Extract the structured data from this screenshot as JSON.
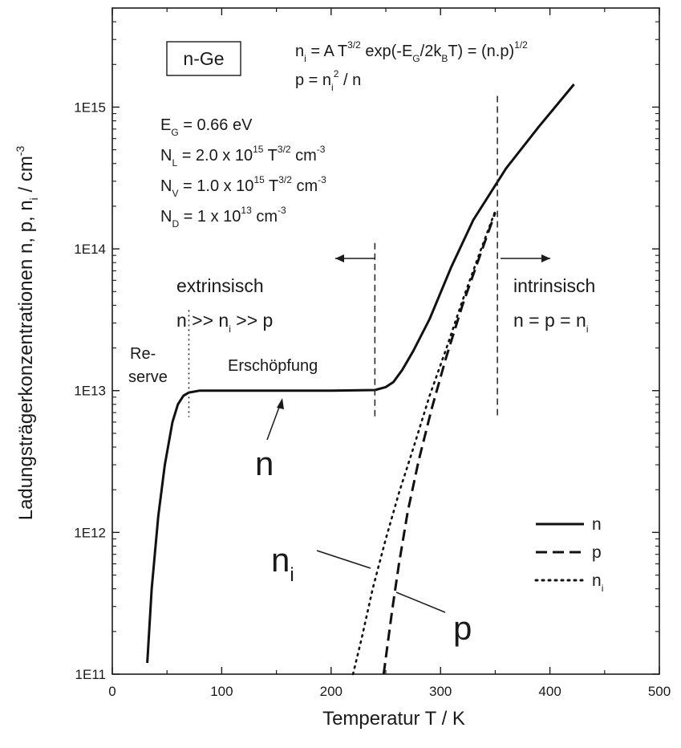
{
  "chart_data": {
    "type": "line",
    "xlabel": "Temperatur T  / K",
    "ylabel": "Ladungsträgerkonzentrationen n, p, n_i / cm^-3",
    "xlim": [
      0,
      500
    ],
    "ylim": [
      100000000000.0,
      5000000000000000.0
    ],
    "y_scale": "log",
    "x_ticks": [
      0,
      100,
      200,
      300,
      400,
      500
    ],
    "y_ticks": [
      {
        "value": 100000000000.0,
        "label": "1E11"
      },
      {
        "value": 1000000000000.0,
        "label": "1E12"
      },
      {
        "value": 10000000000000.0,
        "label": "1E13"
      },
      {
        "value": 100000000000000.0,
        "label": "1E14"
      },
      {
        "value": 1000000000000000.0,
        "label": "1E15"
      }
    ],
    "grid": false,
    "legend": {
      "placement": "bottom-right"
    },
    "series": [
      {
        "name": "n",
        "style": "solid",
        "x": [
          32,
          36,
          42,
          48,
          55,
          60,
          65,
          70,
          80,
          100,
          150,
          200,
          240,
          250,
          257,
          265,
          275,
          290,
          310,
          330,
          360,
          390,
          422
        ],
        "y": [
          120000000000.0,
          400000000000.0,
          1300000000000.0,
          3000000000000.0,
          6000000000000.0,
          8000000000000.0,
          9200000000000.0,
          9700000000000.0,
          10000000000000.0,
          10000000000000.0,
          10000000000000.0,
          10000000000000.0,
          10100000000000.0,
          10600000000000.0,
          11500000000000.0,
          14000000000000.0,
          19000000000000.0,
          32000000000000.0,
          75000000000000.0,
          160000000000000.0,
          370000000000000.0,
          730000000000000.0,
          1450000000000000.0
        ]
      },
      {
        "name": "p",
        "style": "dashed",
        "x": [
          248,
          252,
          256,
          262,
          270,
          280,
          292,
          305,
          320,
          335,
          350
        ],
        "y": [
          100000000000.0,
          170000000000.0,
          290000000000.0,
          600000000000.0,
          1400000000000.0,
          3200000000000.0,
          7500000000000.0,
          17000000000000.0,
          40000000000000.0,
          85000000000000.0,
          180000000000000.0
        ]
      },
      {
        "name": "n_i",
        "style": "dotted",
        "x": [
          220,
          228,
          238,
          250,
          262,
          275,
          290,
          305,
          320,
          335,
          350
        ],
        "y": [
          100000000000.0,
          180000000000.0,
          400000000000.0,
          900000000000.0,
          1900000000000.0,
          3900000000000.0,
          9200000000000.0,
          19500000000000.0,
          43000000000000.0,
          90000000000000.0,
          185000000000000.0
        ]
      }
    ],
    "vlines": [
      {
        "x": 70,
        "style": "dotted",
        "y_range": [
          6500000000000.0,
          37000000000000.0
        ]
      },
      {
        "x": 240,
        "style": "dashed",
        "y_range": [
          6500000000000.0,
          110000000000000.0
        ]
      },
      {
        "x": 352,
        "style": "dashed",
        "y_range": [
          6500000000000.0,
          1200000000000000.0
        ]
      }
    ],
    "annotations": {
      "material": "n-Ge",
      "formula_ni": {
        "n": "n",
        "i": "i",
        "a": " = A T",
        "a_sup": "3/2",
        "b": " exp(-E",
        "b_sub": "G",
        "c": "/2k",
        "c_sub": "B",
        "d": "T) = (n.p)",
        "d_sup": "1/2"
      },
      "formula_p": {
        "a": "p = n",
        "a_sub": "i",
        "a_sup": "2",
        "b": " / n"
      },
      "params": [
        {
          "a": "E",
          "a_sub": "G",
          "b": " = 0.66 eV",
          "b_sup": "",
          "c": ""
        },
        {
          "a": "N",
          "a_sub": "L",
          "b": " = 2.0 x 10",
          "b_sup": "15",
          "c": " T",
          "c_sup": "3/2",
          "d": " cm",
          "d_sup": "-3"
        },
        {
          "a": "N",
          "a_sub": "V",
          "b": " = 1.0 x 10",
          "b_sup": "15",
          "c": " T",
          "c_sup": "3/2",
          "d": " cm",
          "d_sup": "-3"
        },
        {
          "a": "N",
          "a_sub": "D",
          "b": " = 1 x 10",
          "b_sup": "13",
          "c": " cm",
          "c_sup": "-3",
          "d": "",
          "d_sup": ""
        }
      ],
      "extrinsic": {
        "title": "extrinsisch",
        "rel_a": "n >> n",
        "rel_sub": "i",
        "rel_b": " >> p"
      },
      "intrinsic": {
        "title": "intrinsisch",
        "rel_a": "n = p = n",
        "rel_sub": "i"
      },
      "reserve_1": "Re-",
      "reserve_2": "serve",
      "exhaustion": "Erschöpfung",
      "label_n": "n",
      "label_ni_base": "n",
      "label_ni_sub": "i",
      "label_p": "p"
    },
    "legend_entries": [
      {
        "label": "n",
        "sub": "",
        "style": "solid"
      },
      {
        "label": "p",
        "sub": "",
        "style": "dashed"
      },
      {
        "label": "n",
        "sub": "i",
        "style": "dotted"
      }
    ]
  }
}
